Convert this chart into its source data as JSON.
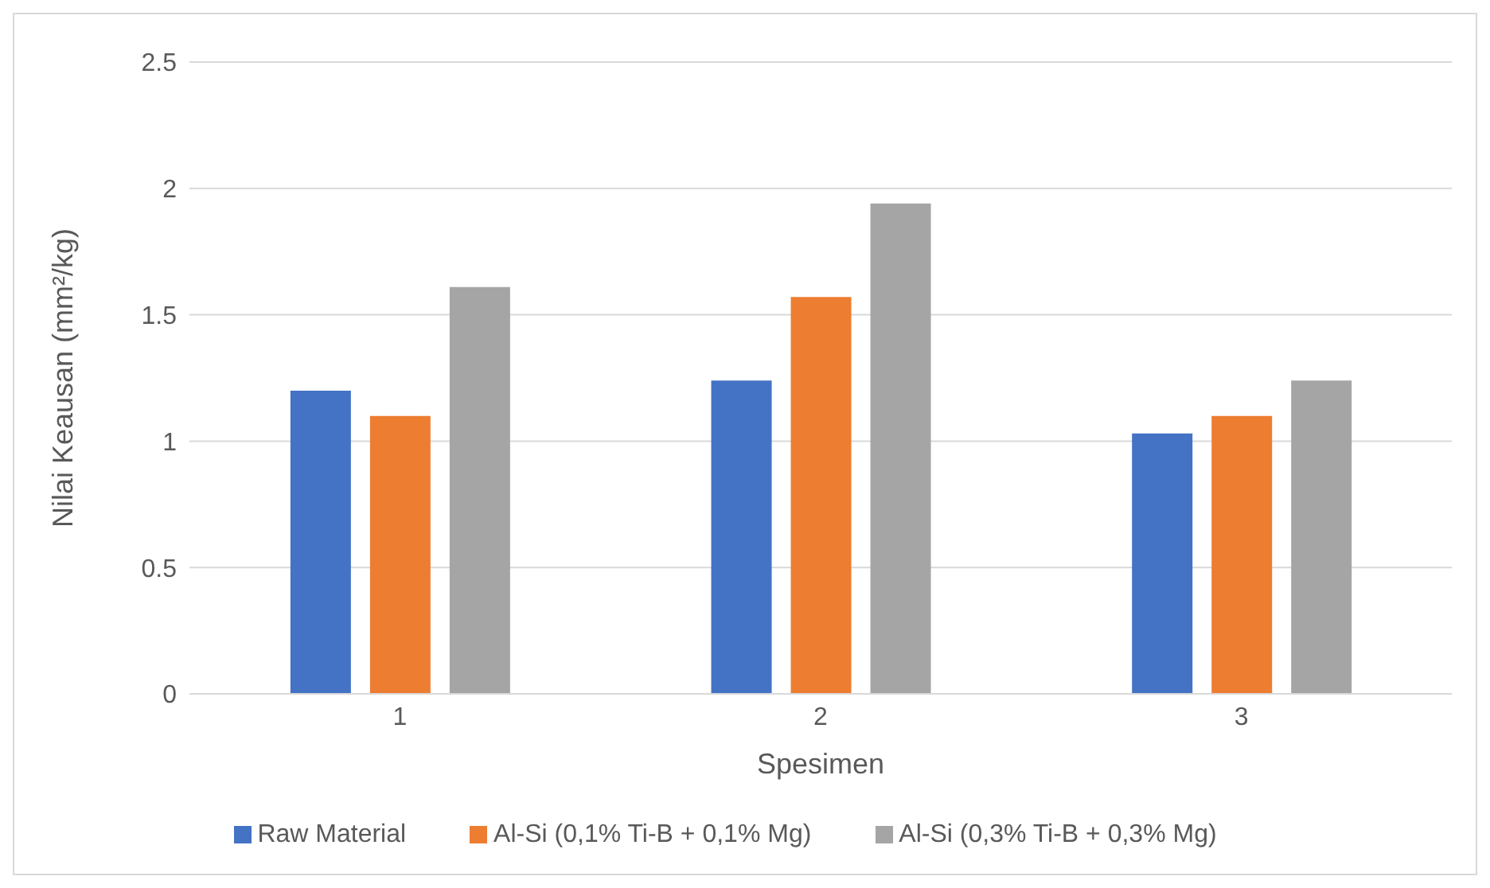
{
  "chart_data": {
    "type": "bar",
    "xlabel": "Spesimen",
    "ylabel": "Nilai Keausan (mm²/kg)",
    "categories": [
      "1",
      "2",
      "3"
    ],
    "series": [
      {
        "name": "Raw Material",
        "color": "#4472c4",
        "values": [
          1.2,
          1.24,
          1.03
        ]
      },
      {
        "name": "Al-Si (0,1% Ti-B + 0,1% Mg)",
        "color": "#ed7d31",
        "values": [
          1.1,
          1.57,
          1.1
        ]
      },
      {
        "name": "Al-Si (0,3% Ti-B + 0,3% Mg)",
        "color": "#a5a5a5",
        "values": [
          1.61,
          1.94,
          1.24
        ]
      }
    ],
    "ylim": [
      0,
      2.5
    ],
    "yticks": [
      0,
      0.5,
      1,
      1.5,
      2,
      2.5
    ],
    "grid": "y",
    "legend": "bottom"
  }
}
